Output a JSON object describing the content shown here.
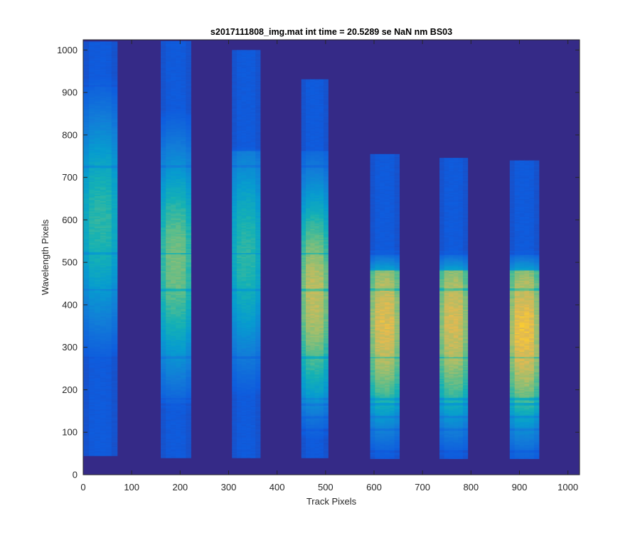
{
  "chart_data": {
    "type": "heatmap",
    "title": "s2017111808_img.mat int time = 20.5289 se  NaN nm BS03",
    "xlabel": "Track Pixels",
    "ylabel": "Wavelength Pixels",
    "xlim": [
      0,
      1024
    ],
    "ylim": [
      0,
      1024
    ],
    "x_ticks": [
      0,
      100,
      200,
      300,
      400,
      500,
      600,
      700,
      800,
      900,
      1000
    ],
    "y_ticks": [
      0,
      100,
      200,
      300,
      400,
      500,
      600,
      700,
      800,
      900,
      1000
    ],
    "colormap": "parula",
    "background_color": "#352a87",
    "grid": false,
    "legend": "none",
    "tracks": [
      {
        "x_start": 0,
        "x_end": 70,
        "y_min": 45,
        "y_max": 1020,
        "peak": 0.55,
        "center_y": 600,
        "bright_edge": 1000
      },
      {
        "x_start": 160,
        "x_end": 222,
        "y_min": 40,
        "y_max": 1020,
        "peak": 0.68,
        "center_y": 500,
        "bright_edge": 1000
      },
      {
        "x_start": 307,
        "x_end": 365,
        "y_min": 40,
        "y_max": 1000,
        "peak": 0.55,
        "center_y": 520,
        "bright_edge": 760
      },
      {
        "x_start": 450,
        "x_end": 505,
        "y_min": 40,
        "y_max": 930,
        "peak": 0.82,
        "center_y": 420,
        "bright_edge": 760
      },
      {
        "x_start": 592,
        "x_end": 652,
        "y_min": 38,
        "y_max": 755,
        "peak": 0.88,
        "center_y": 360,
        "bright_edge": 480
      },
      {
        "x_start": 735,
        "x_end": 793,
        "y_min": 38,
        "y_max": 745,
        "peak": 0.86,
        "center_y": 360,
        "bright_edge": 480
      },
      {
        "x_start": 880,
        "x_end": 940,
        "y_min": 38,
        "y_max": 740,
        "peak": 0.92,
        "center_y": 340,
        "bright_edge": 480
      }
    ]
  }
}
